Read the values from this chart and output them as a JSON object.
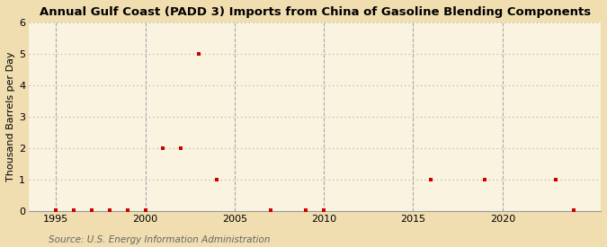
{
  "title": "Annual Gulf Coast (PADD 3) Imports from China of Gasoline Blending Components",
  "ylabel": "Thousand Barrels per Day",
  "source": "Source: U.S. Energy Information Administration",
  "fig_background_color": "#f0ddb0",
  "plot_background_color": "#faf3e0",
  "data": [
    [
      1995,
      0.02
    ],
    [
      1996,
      0.02
    ],
    [
      1997,
      0.02
    ],
    [
      1998,
      0.02
    ],
    [
      1999,
      0.02
    ],
    [
      2000,
      0.02
    ],
    [
      2001,
      2.0
    ],
    [
      2002,
      2.0
    ],
    [
      2003,
      5.0
    ],
    [
      2004,
      1.0
    ],
    [
      2007,
      0.02
    ],
    [
      2009,
      0.02
    ],
    [
      2010,
      0.02
    ],
    [
      2016,
      1.0
    ],
    [
      2019,
      1.0
    ],
    [
      2023,
      1.0
    ],
    [
      2024,
      0.02
    ]
  ],
  "marker_color": "#cc0000",
  "marker_size": 12,
  "xlim": [
    1993.5,
    2025.5
  ],
  "ylim": [
    0,
    6
  ],
  "yticks": [
    0,
    1,
    2,
    3,
    4,
    5,
    6
  ],
  "xticks": [
    1995,
    2000,
    2005,
    2010,
    2015,
    2020
  ],
  "grid_color": "#aaaaaa",
  "title_fontsize": 9.5,
  "axis_label_fontsize": 8,
  "tick_fontsize": 8,
  "source_fontsize": 7.5
}
